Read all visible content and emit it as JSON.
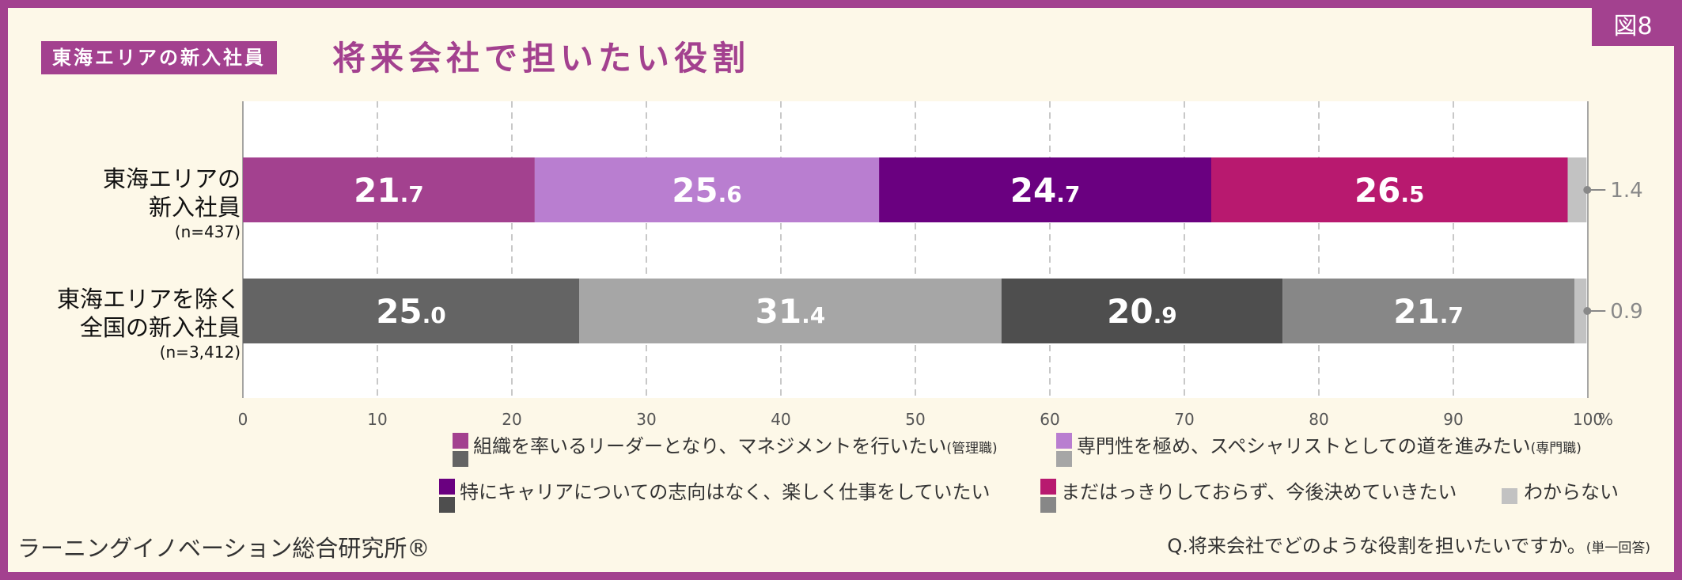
{
  "figure_tag": "図8",
  "header": {
    "badge": "東海エリアの新入社員",
    "title": "将来会社で担いたい役割"
  },
  "colors": {
    "frame": "#a3418f",
    "background": "#fdf8e8",
    "series_tokai": [
      "#a3418f",
      "#b97ed0",
      "#6a0080",
      "#b8196f",
      "#c2c2c2"
    ],
    "series_national": [
      "#646464",
      "#a6a6a6",
      "#4e4e4e",
      "#878787",
      "#c2c2c2"
    ]
  },
  "chart_data": {
    "type": "bar",
    "orientation": "horizontal",
    "stacked": true,
    "categories": [
      {
        "line1": "東海エリアの",
        "line2": "新入社員",
        "n": "(n=437)"
      },
      {
        "line1": "東海エリアを除く",
        "line2": "全国の新入社員",
        "n": "(n=3,412)"
      }
    ],
    "series": [
      {
        "name": "組織を率いるリーダーとなり、マネジメントを行いたい",
        "name_suffix": "(管理職)",
        "values": [
          21.7,
          25.0
        ]
      },
      {
        "name": "専門性を極め、スペシャリストとしての道を進みたい",
        "name_suffix": "(専門職)",
        "values": [
          25.6,
          31.4
        ]
      },
      {
        "name": "特にキャリアについての志向はなく、楽しく仕事をしていたい",
        "name_suffix": "",
        "values": [
          24.7,
          20.9
        ]
      },
      {
        "name": "まだはっきりしておらず、今後決めていきたい",
        "name_suffix": "",
        "values": [
          26.5,
          21.7
        ]
      },
      {
        "name": "わからない",
        "name_suffix": "",
        "values": [
          1.4,
          0.9
        ]
      }
    ],
    "value_labels": [
      [
        {
          "int": "21",
          "dec": ".7"
        },
        {
          "int": "25",
          "dec": ".6"
        },
        {
          "int": "24",
          "dec": ".7"
        },
        {
          "int": "26",
          "dec": ".5"
        },
        {
          "text": "1.4"
        }
      ],
      [
        {
          "int": "25",
          "dec": ".0"
        },
        {
          "int": "31",
          "dec": ".4"
        },
        {
          "int": "20",
          "dec": ".9"
        },
        {
          "int": "21",
          "dec": ".7"
        },
        {
          "text": "0.9"
        }
      ]
    ],
    "xlim": [
      0,
      100
    ],
    "xticks": [
      "0",
      "10",
      "20",
      "30",
      "40",
      "50",
      "60",
      "70",
      "80",
      "90",
      "100"
    ],
    "x_unit": "%",
    "grid": true,
    "legend_position": "bottom"
  },
  "source": "ラーニングイノベーション総合研究所®",
  "question": {
    "text": "Q.将来会社でどのような役割を担いたいですか。",
    "suffix": "(単一回答)"
  }
}
